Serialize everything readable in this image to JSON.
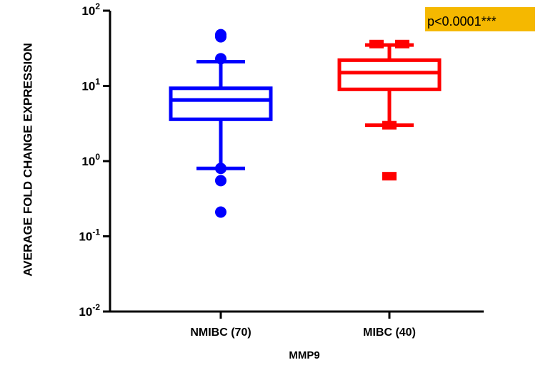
{
  "annotation": {
    "pvalue": "p<0.0001***",
    "highlight_color": "#f5b800"
  },
  "chart_data": {
    "type": "box",
    "xlabel": "MMP9",
    "ylabel": "AVERAGE FOLD CHANGE EXPRESSION",
    "yscale": "log",
    "ylim": [
      0.01,
      100
    ],
    "yticks": [
      {
        "value": 100,
        "base": "10",
        "exp": "2"
      },
      {
        "value": 10,
        "base": "10",
        "exp": "1"
      },
      {
        "value": 1,
        "base": "10",
        "exp": "0"
      },
      {
        "value": 0.1,
        "base": "10",
        "exp": "-1"
      },
      {
        "value": 0.01,
        "base": "10",
        "exp": "-2"
      }
    ],
    "categories": [
      "NMIBC (70)",
      "MIBC (40)"
    ],
    "series": [
      {
        "category": "NMIBC (70)",
        "color": "#0000ff",
        "marker": "circle",
        "whisker_low": 0.8,
        "q1": 3.6,
        "median": 6.5,
        "q3": 9.3,
        "whisker_high": 21,
        "outliers": [
          45,
          48,
          23,
          0.8,
          0.55,
          0.21
        ]
      },
      {
        "category": "MIBC (40)",
        "color": "#ff0000",
        "marker": "square",
        "whisker_low": 3.0,
        "q1": 9.0,
        "median": 15,
        "q3": 22,
        "whisker_high": 35,
        "outliers": [
          36,
          36,
          3.0,
          0.63
        ]
      }
    ]
  }
}
